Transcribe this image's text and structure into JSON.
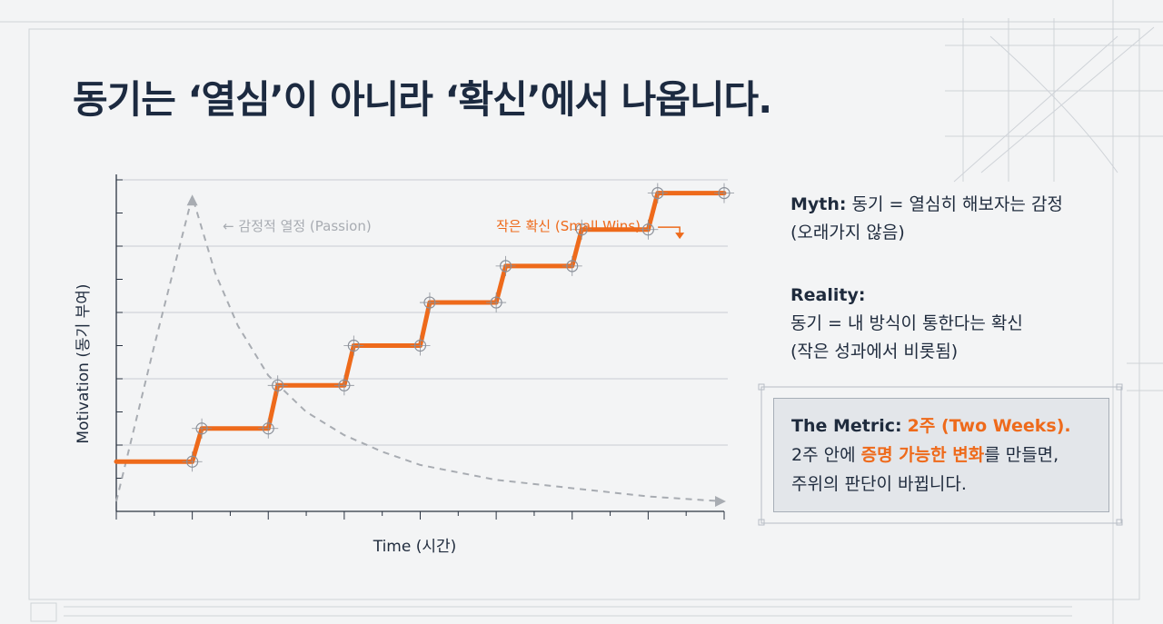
{
  "slide": {
    "title": "동기는 ‘열심’이 아니라 ‘확신’에서 나옵니다.",
    "myth": {
      "label": "Myth:",
      "line1": "동기 = 열심히 해보자는 감정",
      "line2": "(오래가지 않음)"
    },
    "reality": {
      "label": "Reality:",
      "line1": "동기 = 내 방식이 통한다는 확신",
      "line2": "(작은 성과에서 비롯됨)"
    },
    "metric": {
      "label": "The Metric:",
      "highlight": "2주 (Two Weeks).",
      "line2_pre": "2주 안에 ",
      "line2_highlight": "증명 가능한 변화",
      "line2_post": "를 만들면,",
      "line3": "주위의 판단이 바뀝니다."
    }
  },
  "colors": {
    "accent": "#ee6a1b",
    "dark_text": "#1c2a40",
    "passion_line": "#a8acb2",
    "grid": "#c9cdd2"
  },
  "chart_data": {
    "type": "line",
    "xlabel": "Time (시간)",
    "ylabel": "Motivation (동기 부여)",
    "xlim": [
      0,
      16
    ],
    "ylim": [
      0,
      10
    ],
    "grid": true,
    "x_ticks": 16,
    "y_ticks": 10,
    "series": [
      {
        "name": "감정적 열정 (Passion)",
        "style": "dashed",
        "color": "#a8acb2",
        "points": [
          [
            0,
            0.3
          ],
          [
            1,
            5.0
          ],
          [
            2,
            9.5
          ],
          [
            2.6,
            7.2
          ],
          [
            3.2,
            5.6
          ],
          [
            4,
            4.1
          ],
          [
            5,
            3.0
          ],
          [
            6,
            2.3
          ],
          [
            7,
            1.8
          ],
          [
            8,
            1.4
          ],
          [
            10,
            0.95
          ],
          [
            12,
            0.7
          ],
          [
            14,
            0.45
          ],
          [
            16,
            0.3
          ]
        ]
      },
      {
        "name": "작은 확신 (Small Wins)",
        "style": "solid",
        "color": "#ee6a1b",
        "points": [
          [
            0,
            1.5
          ],
          [
            2,
            1.5
          ],
          [
            2.25,
            2.5
          ],
          [
            4,
            2.5
          ],
          [
            4.25,
            3.8
          ],
          [
            6,
            3.8
          ],
          [
            6.25,
            5.0
          ],
          [
            8,
            5.0
          ],
          [
            8.25,
            6.3
          ],
          [
            10,
            6.3
          ],
          [
            10.25,
            7.4
          ],
          [
            12,
            7.4
          ],
          [
            12.25,
            8.5
          ],
          [
            14,
            8.5
          ],
          [
            14.25,
            9.6
          ],
          [
            16,
            9.6
          ]
        ]
      }
    ],
    "markers": [
      [
        2,
        1.5
      ],
      [
        2.25,
        2.5
      ],
      [
        4,
        2.5
      ],
      [
        4.25,
        3.8
      ],
      [
        6,
        3.8
      ],
      [
        6.25,
        5.0
      ],
      [
        8,
        5.0
      ],
      [
        8.25,
        6.3
      ],
      [
        10,
        6.3
      ],
      [
        10.25,
        7.4
      ],
      [
        12,
        7.4
      ],
      [
        12.25,
        8.5
      ],
      [
        14,
        8.5
      ],
      [
        14.25,
        9.6
      ],
      [
        16,
        9.6
      ]
    ],
    "annotations": [
      {
        "text": "← 감정적 열정 (Passion)",
        "x": 2.8,
        "y": 8.6,
        "color": "#a8acb2"
      },
      {
        "text": "작은 확신 (Small Wins)",
        "x": 10.0,
        "y": 8.6,
        "color": "#ee6a1b"
      }
    ]
  }
}
